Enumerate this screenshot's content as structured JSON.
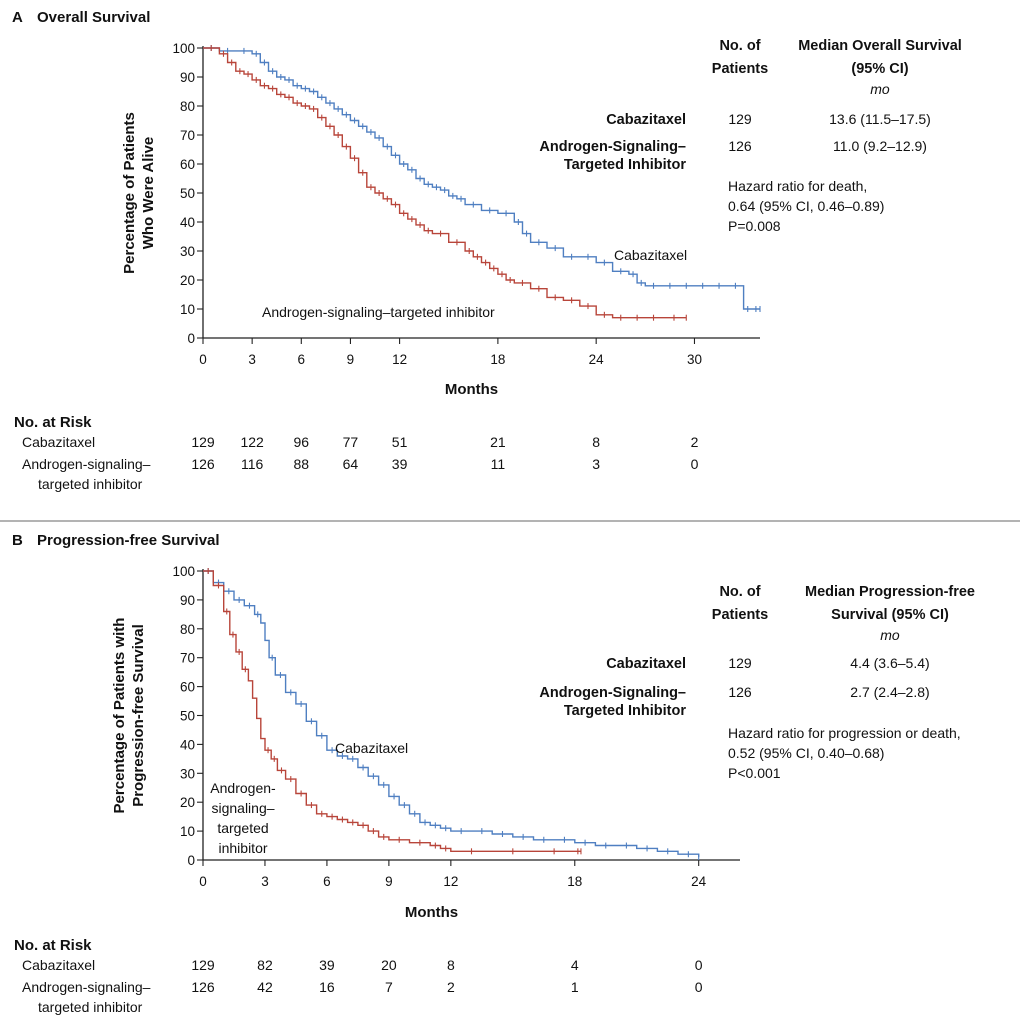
{
  "chart_data": [
    {
      "type": "line",
      "panel_letter": "A",
      "title": "Overall Survival",
      "xlabel": "Months",
      "ylabel_lines": [
        "Percentage of Patients",
        "Who Were Alive"
      ],
      "xlim": [
        0,
        34
      ],
      "ylim": [
        0,
        100
      ],
      "xticks": [
        0,
        3,
        6,
        9,
        12,
        18,
        24,
        30
      ],
      "yticks": [
        0,
        10,
        20,
        30,
        40,
        50,
        60,
        70,
        80,
        90,
        100
      ],
      "grid": false,
      "series": [
        {
          "name": "Cabazitaxel",
          "color": "#4f7fc1",
          "x": [
            0,
            1,
            2,
            3,
            3.5,
            4,
            4.5,
            5,
            5.5,
            6,
            6.5,
            7,
            7.5,
            8,
            8.5,
            9,
            9.5,
            10,
            10.5,
            11,
            11.5,
            12,
            12.5,
            13,
            13.5,
            14,
            14.5,
            15,
            15.5,
            16,
            17,
            18,
            19,
            19.5,
            20,
            21,
            22,
            23,
            24,
            25,
            26,
            26.5,
            27,
            28,
            29,
            30,
            31,
            32,
            33,
            33.5,
            34
          ],
          "y": [
            100,
            99,
            99,
            98,
            95,
            92,
            90,
            89,
            87,
            86,
            85,
            83,
            81,
            79,
            77,
            75,
            73,
            71,
            69,
            66,
            63,
            60,
            58,
            55,
            53,
            52,
            51,
            49,
            48,
            46,
            44,
            43,
            40,
            36,
            33,
            31,
            28,
            28,
            26,
            23,
            22,
            19,
            18,
            18,
            18,
            18,
            18,
            18,
            10,
            10,
            10
          ]
        },
        {
          "name": "Androgen-signaling–targeted inhibitor",
          "color": "#b8453a",
          "x": [
            0,
            1,
            1.5,
            2,
            2.5,
            3,
            3.5,
            4,
            4.5,
            5,
            5.5,
            6,
            6.5,
            7,
            7.5,
            8,
            8.5,
            9,
            9.5,
            10,
            10.5,
            11,
            11.5,
            12,
            12.5,
            13,
            13.5,
            14,
            15,
            16,
            16.5,
            17,
            17.5,
            18,
            18.5,
            19,
            20,
            21,
            22,
            23,
            24,
            25,
            26,
            27,
            28,
            29.5
          ],
          "y": [
            100,
            98,
            95,
            92,
            91,
            89,
            87,
            86,
            84,
            83,
            81,
            80,
            79,
            76,
            73,
            70,
            66,
            62,
            57,
            52,
            50,
            48,
            46,
            43,
            41,
            39,
            37,
            36,
            33,
            30,
            28,
            26,
            24,
            22,
            20,
            19,
            17,
            14,
            13,
            11,
            8,
            7,
            7,
            7,
            7,
            7
          ]
        }
      ],
      "curve_labels": [
        "Cabazitaxel",
        "Androgen-signaling–targeted inhibitor"
      ],
      "table": {
        "headers": [
          "No. of",
          "Patients",
          "Median Overall Survival",
          "(95% CI)",
          "mo"
        ],
        "rows": [
          {
            "label_lines": [
              "Cabazitaxel"
            ],
            "n": "129",
            "median": "13.6 (11.5–17.5)"
          },
          {
            "label_lines": [
              "Androgen-Signaling–",
              "Targeted Inhibitor"
            ],
            "n": "126",
            "median": "11.0 (9.2–12.9)"
          }
        ],
        "hazard_lines": [
          "Hazard ratio for death,",
          "0.64 (95% CI, 0.46–0.89)",
          "P=0.008"
        ]
      },
      "risk": {
        "title": "No. at Risk",
        "months": [
          0,
          3,
          6,
          9,
          12,
          18,
          24,
          30
        ],
        "rows": [
          {
            "label_lines": [
              "Cabazitaxel"
            ],
            "values": [
              "129",
              "122",
              "96",
              "77",
              "51",
              "21",
              "8",
              "2"
            ]
          },
          {
            "label_lines": [
              "Androgen-signaling–",
              "targeted inhibitor"
            ],
            "values": [
              "126",
              "116",
              "88",
              "64",
              "39",
              "11",
              "3",
              "0"
            ]
          }
        ]
      }
    },
    {
      "type": "line",
      "panel_letter": "B",
      "title": "Progression-free Survival",
      "xlabel": "Months",
      "ylabel_lines": [
        "Percentage of Patients with",
        "Progression-free Survival"
      ],
      "xlim": [
        0,
        26
      ],
      "ylim": [
        0,
        100
      ],
      "xticks": [
        0,
        3,
        6,
        9,
        12,
        18,
        24
      ],
      "yticks": [
        0,
        10,
        20,
        30,
        40,
        50,
        60,
        70,
        80,
        90,
        100
      ],
      "grid": false,
      "series": [
        {
          "name": "Cabazitaxel",
          "color": "#4f7fc1",
          "x": [
            0,
            0.5,
            1,
            1.5,
            2,
            2.5,
            2.8,
            3,
            3.2,
            3.5,
            4,
            4.5,
            5,
            5.5,
            6,
            6.5,
            7,
            7.5,
            8,
            8.5,
            9,
            9.5,
            10,
            10.5,
            11,
            11.5,
            12,
            13,
            14,
            15,
            16,
            17,
            18,
            19,
            20,
            21,
            22,
            23,
            24
          ],
          "y": [
            100,
            96,
            93,
            90,
            88,
            85,
            82,
            76,
            70,
            64,
            58,
            54,
            48,
            43,
            38,
            36,
            35,
            32,
            29,
            26,
            22,
            19,
            16,
            13,
            12,
            11,
            10,
            10,
            9,
            8,
            7,
            7,
            6,
            5,
            5,
            4,
            3,
            2,
            1
          ]
        },
        {
          "name": "Androgen-signaling–targeted inhibitor",
          "color": "#b8453a",
          "x": [
            0,
            0.5,
            1,
            1.3,
            1.6,
            1.9,
            2.2,
            2.4,
            2.6,
            2.8,
            3,
            3.3,
            3.6,
            4,
            4.5,
            5,
            5.5,
            6,
            6.5,
            7,
            7.5,
            8,
            8.5,
            9,
            10,
            11,
            11.5,
            12,
            14,
            16,
            18,
            18.3
          ],
          "y": [
            100,
            95,
            86,
            78,
            72,
            66,
            62,
            56,
            49,
            42,
            38,
            35,
            31,
            28,
            23,
            19,
            16,
            15,
            14,
            13,
            12,
            10,
            8,
            7,
            6,
            5,
            4,
            3,
            3,
            3,
            3,
            3
          ]
        }
      ],
      "curve_labels": [
        "Cabazitaxel",
        "Androgen-",
        "signaling–",
        "targeted",
        "inhibitor"
      ],
      "table": {
        "headers": [
          "No. of",
          "Patients",
          "Median Progression-free",
          "Survival (95% CI)",
          "mo"
        ],
        "rows": [
          {
            "label_lines": [
              "Cabazitaxel"
            ],
            "n": "129",
            "median": "4.4 (3.6–5.4)"
          },
          {
            "label_lines": [
              "Androgen-Signaling–",
              "Targeted Inhibitor"
            ],
            "n": "126",
            "median": "2.7 (2.4–2.8)"
          }
        ],
        "hazard_lines": [
          "Hazard ratio for progression or death,",
          "0.52 (95% CI, 0.40–0.68)",
          "P<0.001"
        ]
      },
      "risk": {
        "title": "No. at Risk",
        "months": [
          0,
          3,
          6,
          9,
          12,
          18,
          24
        ],
        "rows": [
          {
            "label_lines": [
              "Cabazitaxel"
            ],
            "values": [
              "129",
              "82",
              "39",
              "20",
              "8",
              "4",
              "0"
            ]
          },
          {
            "label_lines": [
              "Androgen-signaling–",
              "targeted inhibitor"
            ],
            "values": [
              "126",
              "42",
              "16",
              "7",
              "2",
              "1",
              "0"
            ]
          }
        ]
      }
    }
  ]
}
